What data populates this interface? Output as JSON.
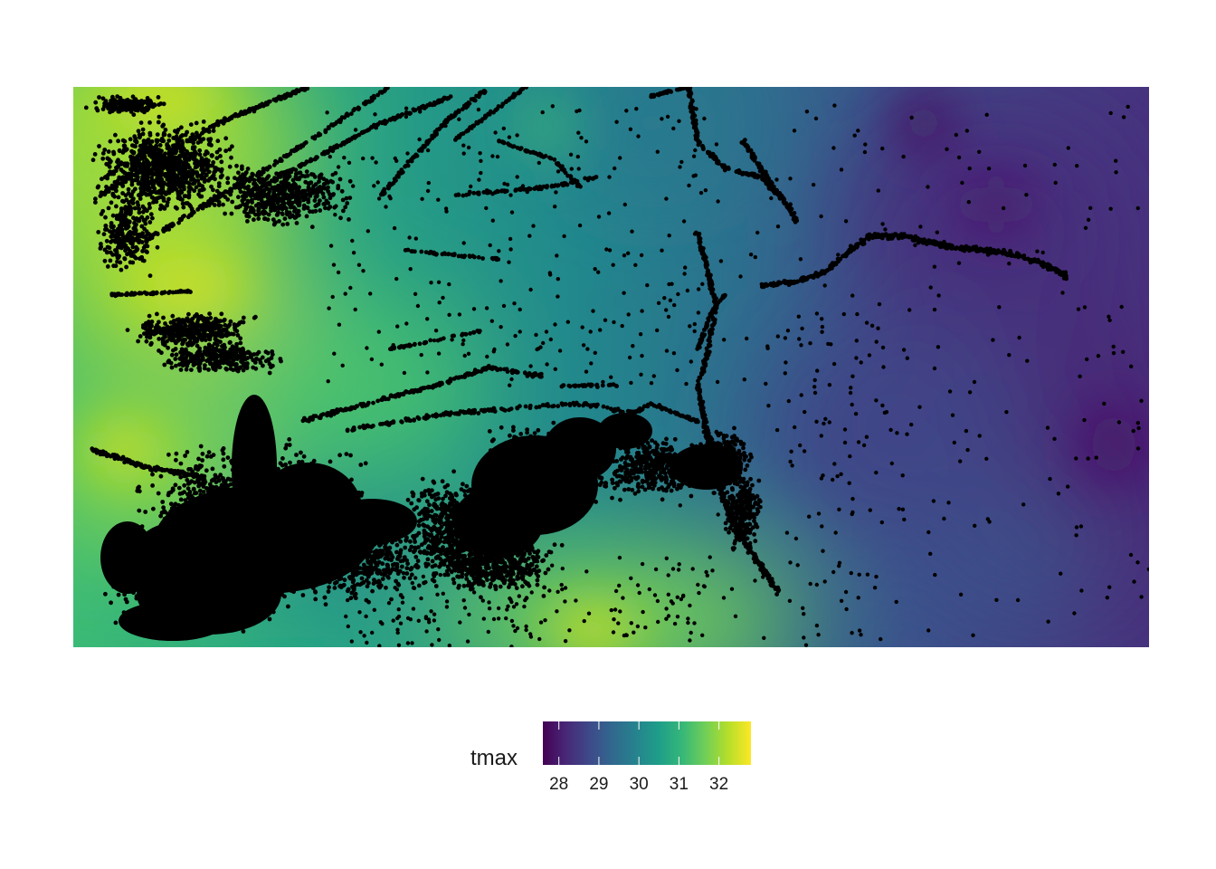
{
  "map": {
    "variable": "tmax",
    "colorscale": "viridis",
    "value_range": [
      27.6,
      32.8
    ],
    "colorbar_stops": [
      "#440154",
      "#482878",
      "#3e4989",
      "#31688e",
      "#26828e",
      "#1f9e89",
      "#35b779",
      "#6ece58",
      "#b5de2b",
      "#fde725"
    ],
    "point_color": "#000000"
  },
  "legend": {
    "title": "tmax",
    "ticks": [
      {
        "value": 28,
        "label": "28"
      },
      {
        "value": 29,
        "label": "29"
      },
      {
        "value": 30,
        "label": "30"
      },
      {
        "value": 31,
        "label": "31"
      },
      {
        "value": 32,
        "label": "32"
      }
    ]
  }
}
